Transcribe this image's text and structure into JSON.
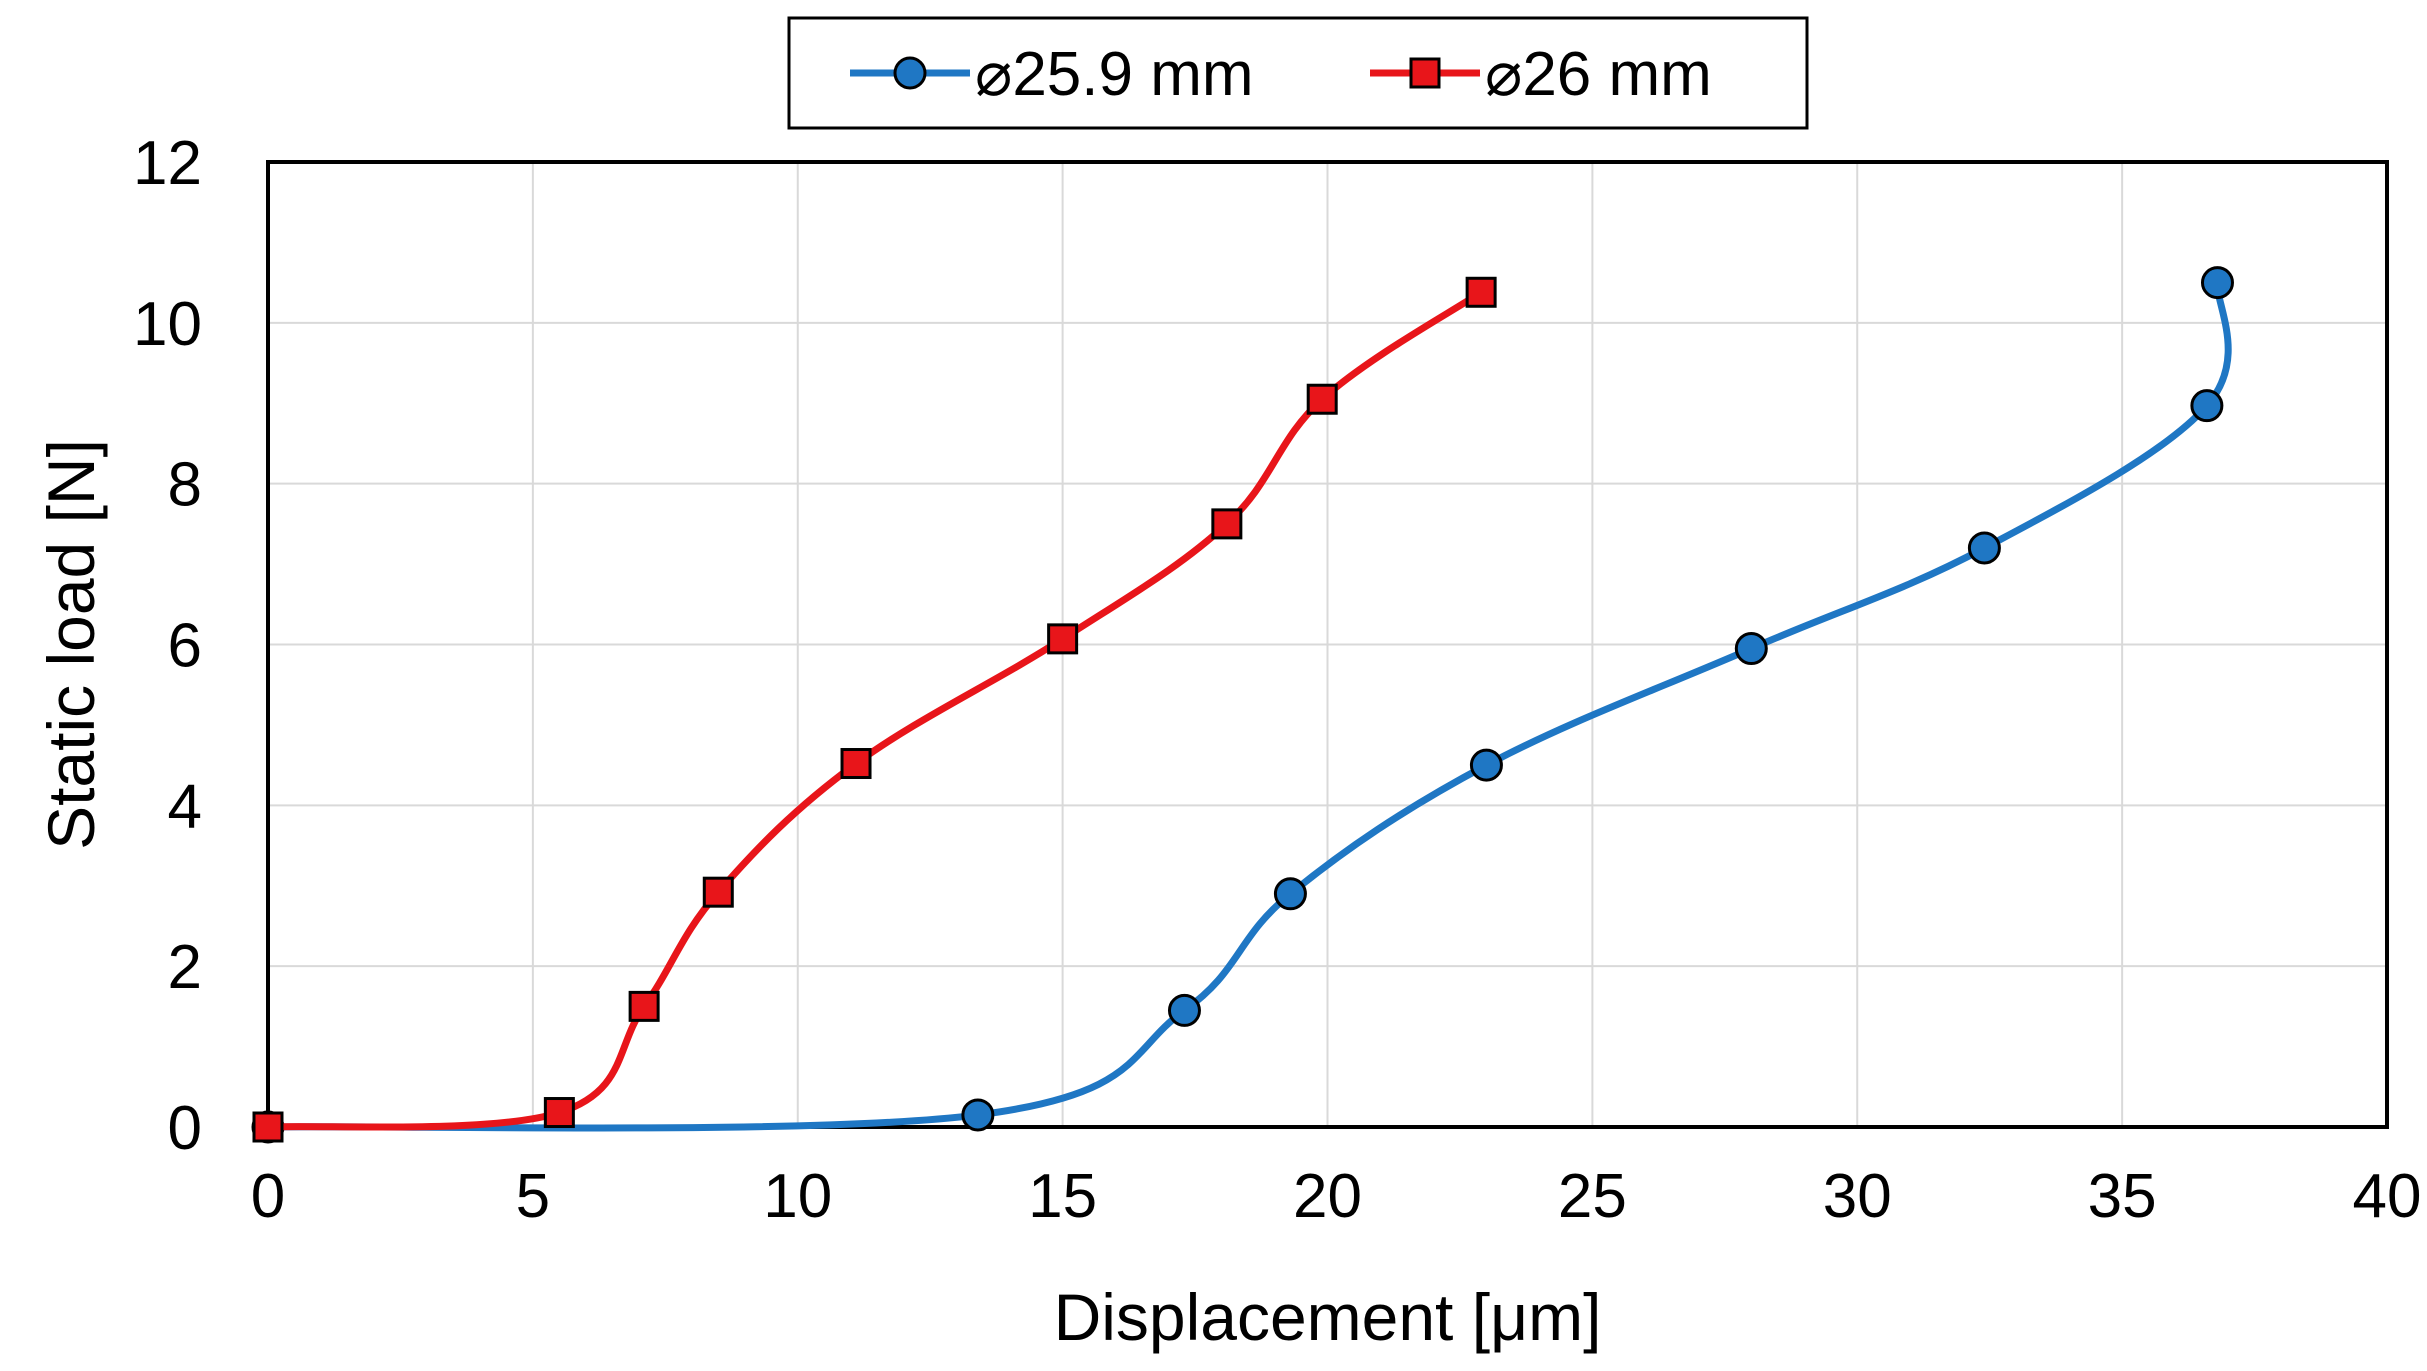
{
  "chart_data": {
    "type": "line",
    "xlabel": "Displacement [μm]",
    "ylabel": "Static load [N]",
    "xlim": [
      0,
      40
    ],
    "ylim": [
      0,
      12
    ],
    "xticks": [
      0,
      5,
      10,
      15,
      20,
      25,
      30,
      35,
      40
    ],
    "yticks": [
      0,
      2,
      4,
      6,
      8,
      10,
      12
    ],
    "grid": true,
    "legend_position": "top-center",
    "series": [
      {
        "name": "⌀25.9 mm",
        "color": "#1f77c4",
        "marker": "circle",
        "smooth": true,
        "x": [
          0,
          13.4,
          17.3,
          19.3,
          23.0,
          28.0,
          32.4,
          36.6,
          36.8
        ],
        "y": [
          0,
          0.15,
          1.45,
          2.9,
          4.5,
          5.95,
          7.2,
          8.97,
          10.5
        ]
      },
      {
        "name": "⌀26 mm",
        "color": "#e8151a",
        "marker": "square",
        "smooth": true,
        "x": [
          0,
          5.5,
          7.1,
          8.5,
          11.1,
          15.0,
          18.1,
          19.9,
          22.9
        ],
        "y": [
          0,
          0.18,
          1.5,
          2.92,
          4.52,
          6.07,
          7.5,
          9.05,
          10.38
        ]
      }
    ]
  }
}
